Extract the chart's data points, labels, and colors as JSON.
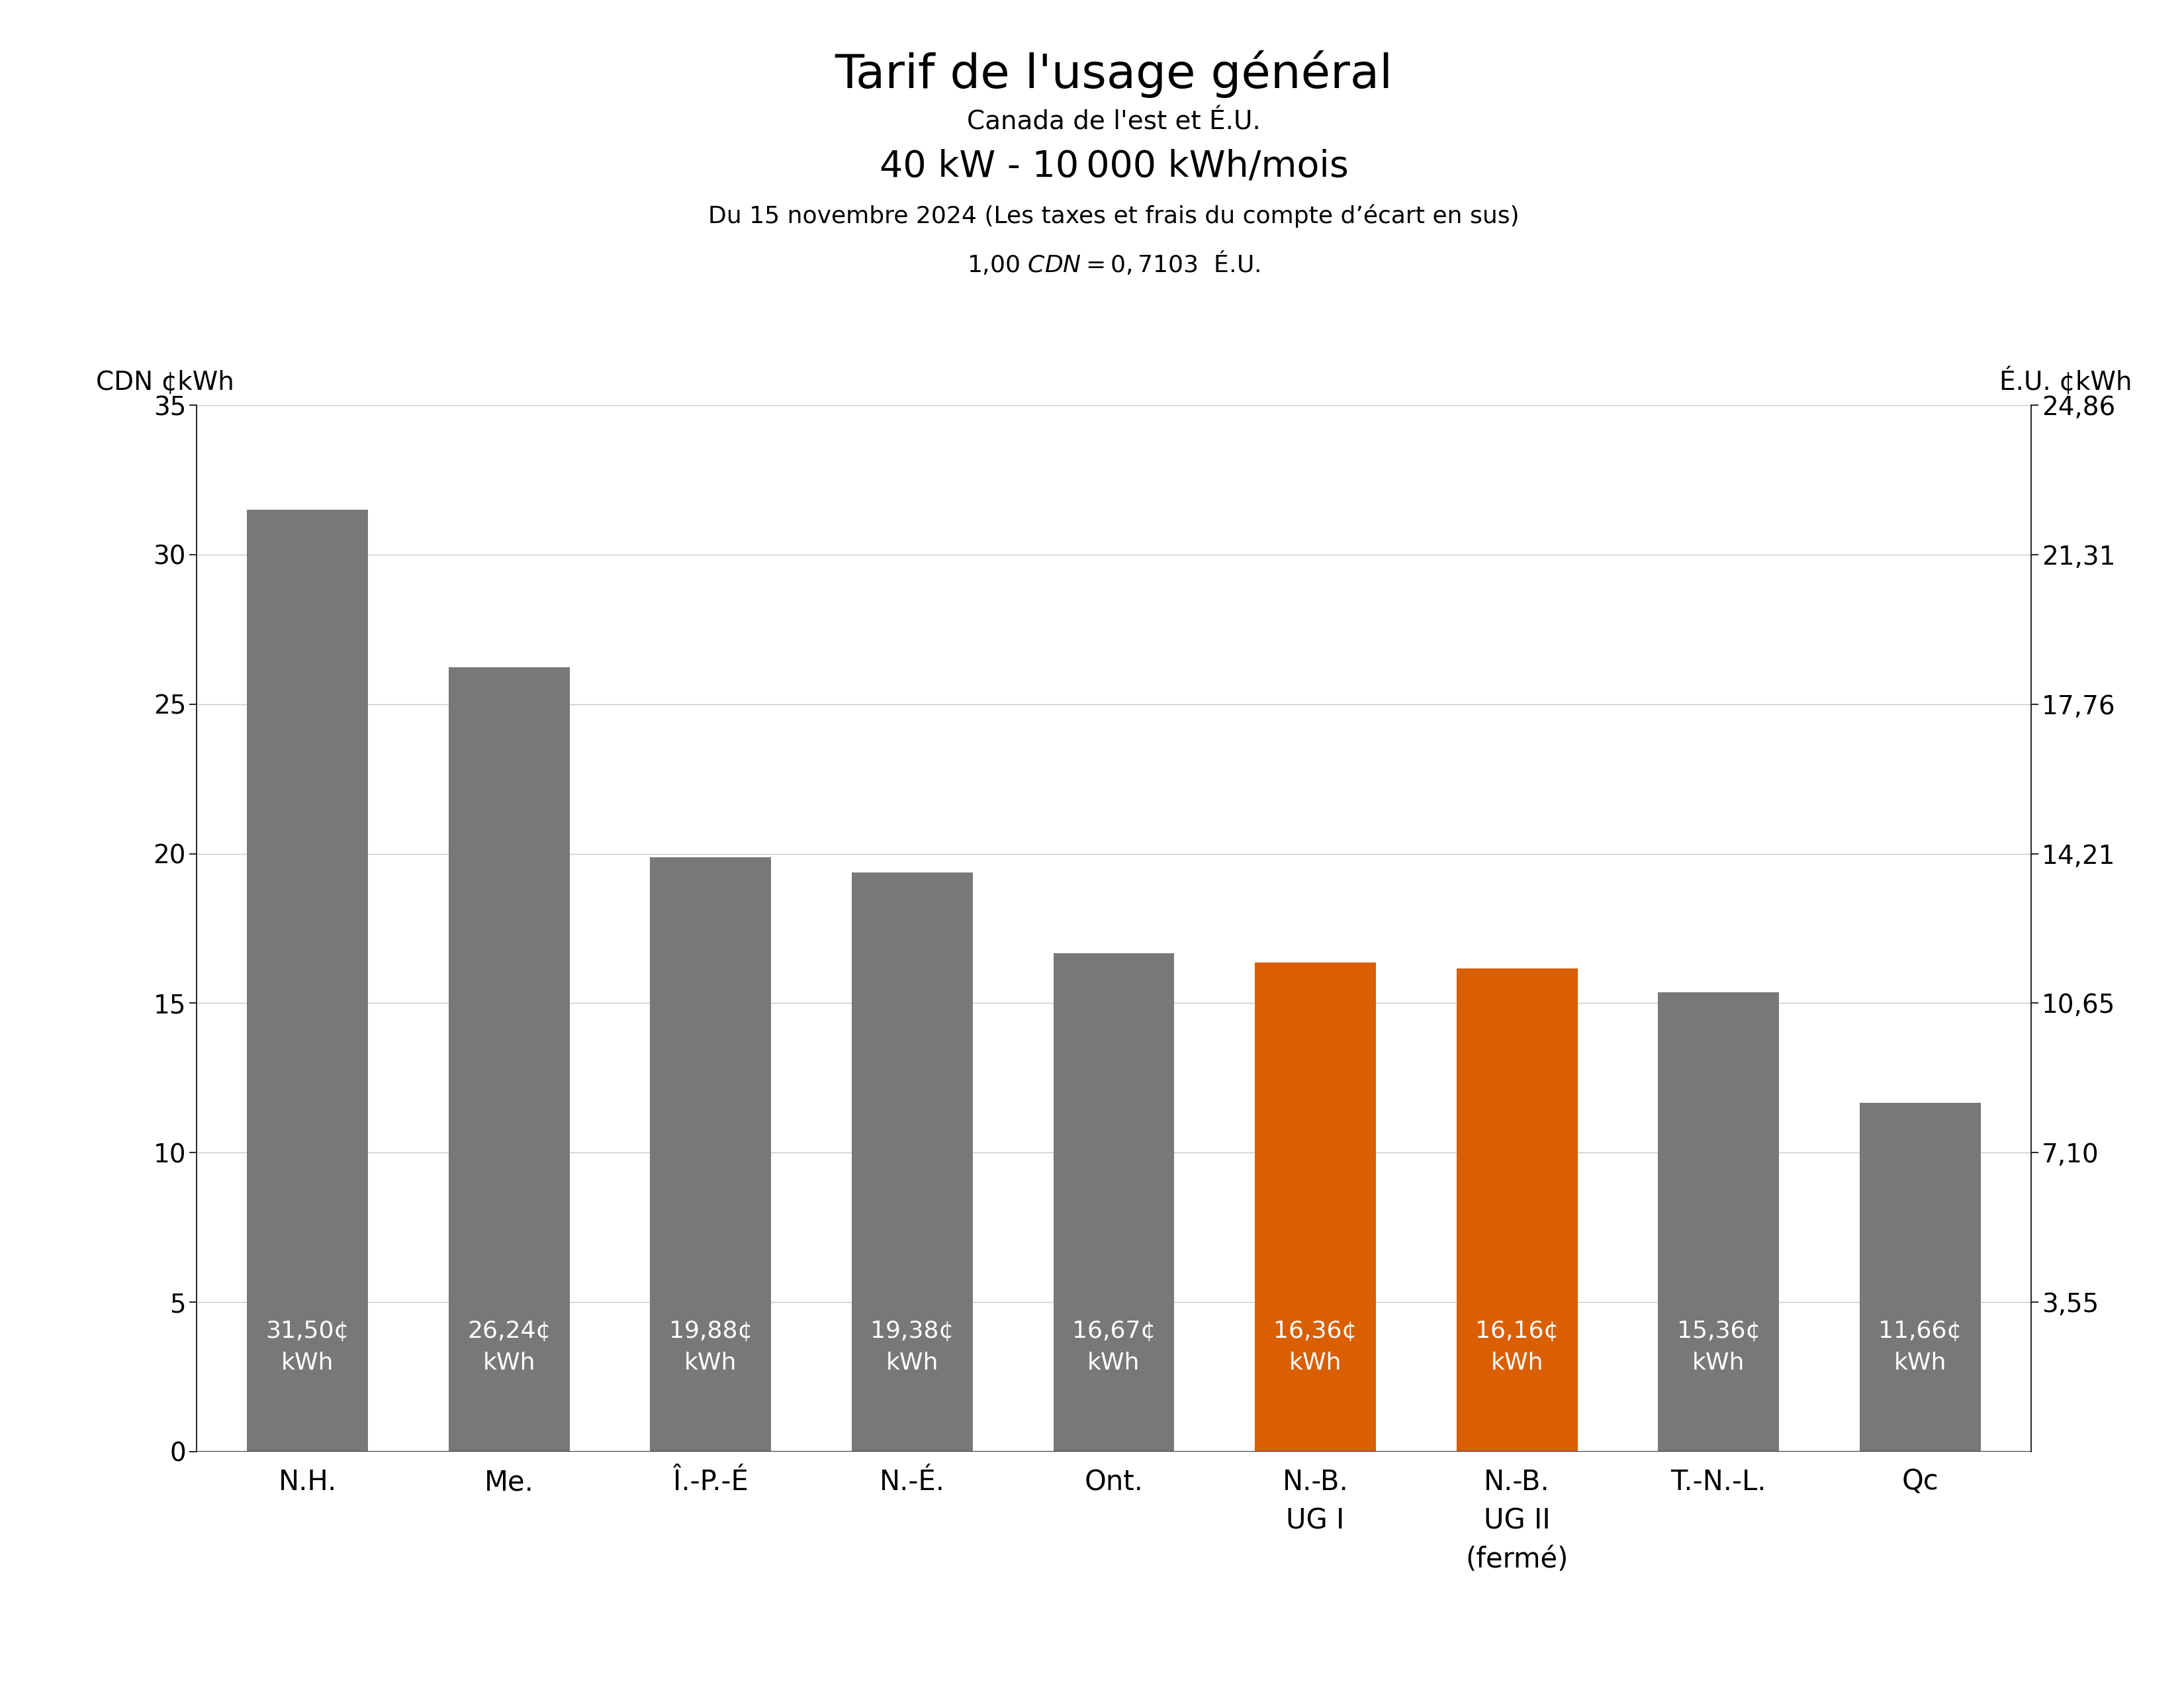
{
  "title": "Tarif de l'usage général",
  "subtitle1": "Canada de l'est et É.U.",
  "subtitle2": "40 kW - 10 000 kWh/mois",
  "subtitle3": "Du 15 novembre 2024 (Les taxes et frais du compte d’écart en sus)",
  "conversion": "1,00 $ CDN = 0,7103 $ É.U.",
  "ylabel_left": "CDN ¢kWh",
  "ylabel_right": "É.U. ¢kWh",
  "categories": [
    "N.H.",
    "Me.",
    "Î.-P.-É",
    "N.-É.",
    "Ont.",
    "N.-B.\nUG I",
    "N.-B.\nUG II\n(fermé)",
    "T.-N.-L.",
    "Qc"
  ],
  "values": [
    31.5,
    26.24,
    19.88,
    19.38,
    16.67,
    16.36,
    16.16,
    15.36,
    11.66
  ],
  "bar_labels": [
    "31,50¢\nkWh",
    "26,24¢\nkWh",
    "19,88¢\nkWh",
    "19,38¢\nkWh",
    "16,67¢\nkWh",
    "16,36¢\nkWh",
    "16,16¢\nkWh",
    "15,36¢\nkWh",
    "11,66¢\nkWh"
  ],
  "bar_colors": [
    "#787878",
    "#787878",
    "#787878",
    "#787878",
    "#787878",
    "#D95F02",
    "#D95F02",
    "#787878",
    "#787878"
  ],
  "ylim": [
    0,
    35
  ],
  "yticks_left": [
    0,
    5,
    10,
    15,
    20,
    25,
    30,
    35
  ],
  "yticks_right_labels": [
    "3,55",
    "7,10",
    "10,65",
    "14,21",
    "17,76",
    "21,31",
    "24,86"
  ],
  "yticks_right_positions": [
    5.0,
    10.0,
    15.0,
    20.0,
    25.0,
    30.0,
    35.0
  ],
  "background_color": "#ffffff",
  "bar_label_color": "#ffffff",
  "bar_label_fontsize": 26,
  "title_fontsize": 52,
  "subtitle1_fontsize": 28,
  "subtitle2_fontsize": 40,
  "subtitle3_fontsize": 26,
  "conversion_fontsize": 26,
  "tick_fontsize": 28,
  "axis_label_fontsize": 28,
  "bar_width": 0.6
}
